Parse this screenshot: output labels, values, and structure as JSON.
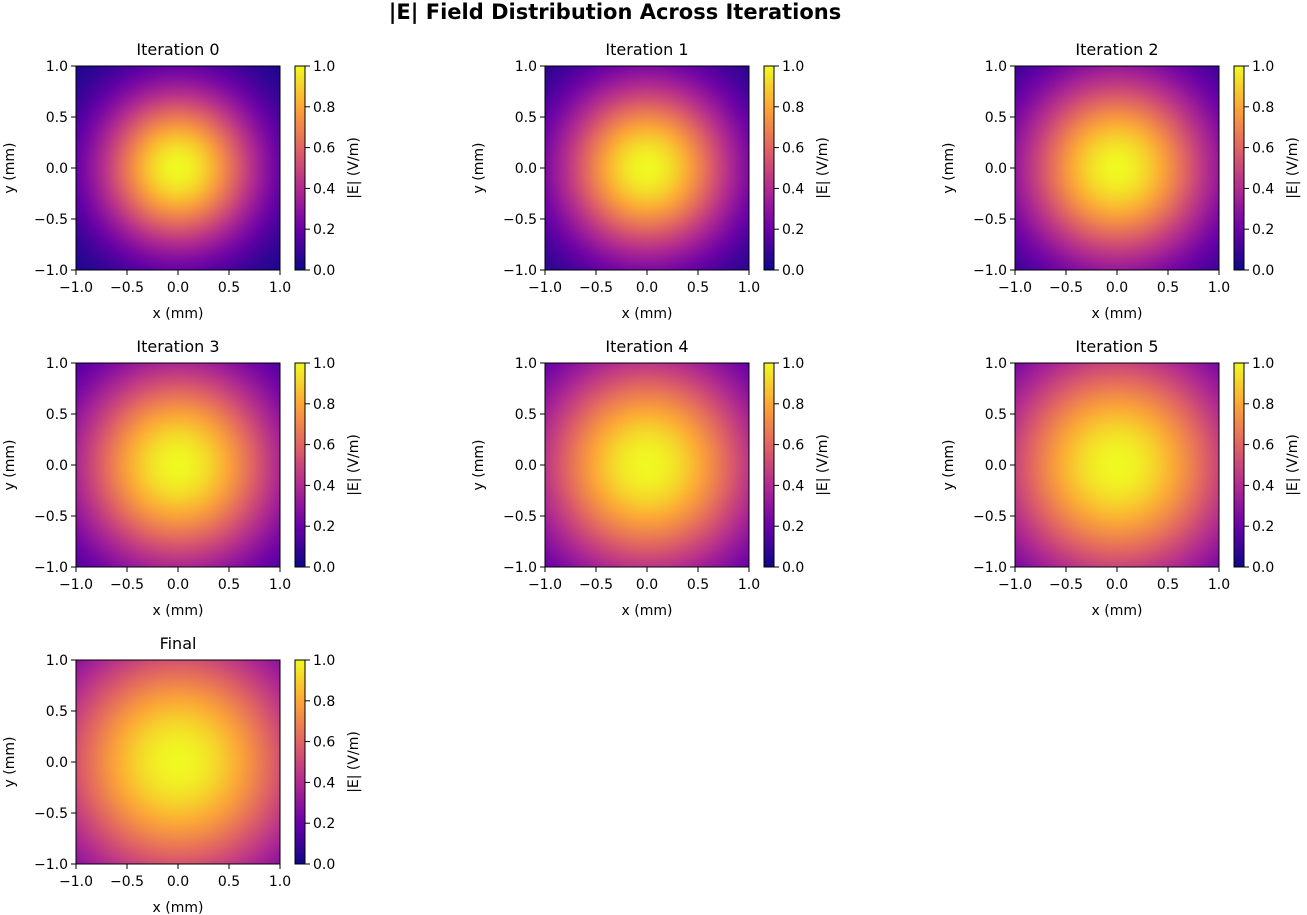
{
  "chart_data": {
    "type": "heatmap",
    "title": "|E| Field Distribution Across Iterations",
    "colormap": "plasma",
    "colormap_stops": [
      "#0d0887",
      "#6a00a8",
      "#b12a90",
      "#e16462",
      "#fca636",
      "#f0f921"
    ],
    "grid": false,
    "panels": [
      {
        "title": "Iteration 0",
        "xlabel": "x (mm)",
        "ylabel": "y (mm)",
        "colorbar_label": "|E| (V/m)",
        "peak": 1.0,
        "width_mm": 0.55
      },
      {
        "title": "Iteration 1",
        "xlabel": "x (mm)",
        "ylabel": "y (mm)",
        "colorbar_label": "|E| (V/m)",
        "peak": 1.0,
        "width_mm": 0.6
      },
      {
        "title": "Iteration 2",
        "xlabel": "x (mm)",
        "ylabel": "y (mm)",
        "colorbar_label": "|E| (V/m)",
        "peak": 1.0,
        "width_mm": 0.66
      },
      {
        "title": "Iteration 3",
        "xlabel": "x (mm)",
        "ylabel": "y (mm)",
        "colorbar_label": "|E| (V/m)",
        "peak": 1.0,
        "width_mm": 0.72
      },
      {
        "title": "Iteration 4",
        "xlabel": "x (mm)",
        "ylabel": "y (mm)",
        "colorbar_label": "|E| (V/m)",
        "peak": 1.0,
        "width_mm": 0.78
      },
      {
        "title": "Iteration 5",
        "xlabel": "x (mm)",
        "ylabel": "y (mm)",
        "colorbar_label": "|E| (V/m)",
        "peak": 1.0,
        "width_mm": 0.84
      },
      {
        "title": "Final",
        "xlabel": "x (mm)",
        "ylabel": "y (mm)",
        "colorbar_label": "|E| (V/m)",
        "peak": 1.0,
        "width_mm": 0.9
      }
    ],
    "xlim": [
      -1.0,
      1.0
    ],
    "ylim": [
      -1.0,
      1.0
    ],
    "xticks": [
      "−1.0",
      "−0.5",
      "0.0",
      "0.5",
      "1.0"
    ],
    "yticks": [
      "−1.0",
      "−0.5",
      "0.0",
      "0.5",
      "1.0"
    ],
    "colorbar_range": [
      0.0,
      1.0
    ],
    "colorbar_ticks": [
      "0.0",
      "0.2",
      "0.4",
      "0.6",
      "0.8",
      "1.0"
    ]
  }
}
